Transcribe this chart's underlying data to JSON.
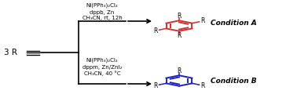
{
  "bg_color": "#ffffff",
  "text_color": "#000000",
  "red_color": "#d03030",
  "blue_color": "#2020c0",
  "condition_a_line1": "Ni(PPh₃)₂Cl₂",
  "condition_a_line2": "dppb, Zn",
  "condition_a_line3": "CH₃CN, rt, 12h",
  "condition_b_line1": "Ni(PPh₃)₂Cl₂",
  "condition_b_line2": "dppm, Zn/ZnI₂",
  "condition_b_line3": "CH₃CN, 40 °C",
  "label_a": "Condition A",
  "label_b": "Condition B",
  "figsize": [
    3.78,
    1.34
  ],
  "dpi": 100
}
